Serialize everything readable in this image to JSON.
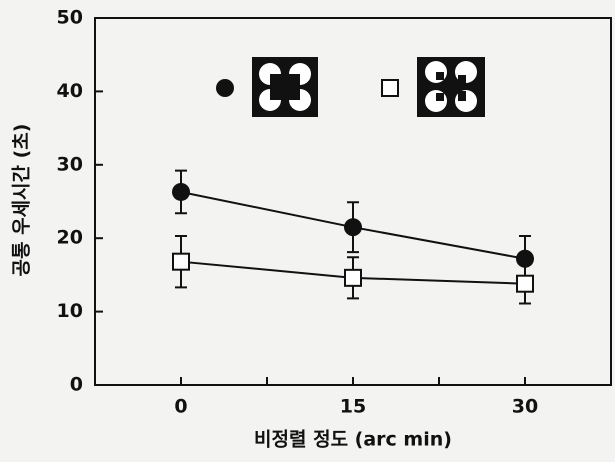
{
  "chart_data": {
    "type": "line",
    "x_label": "비정렬 정도 (arc min)",
    "y_label": "공통 우세시간 (초)",
    "x": [
      0,
      15,
      30
    ],
    "series": [
      {
        "marker": "circle",
        "color": "#111111",
        "values": [
          26.3,
          21.5,
          17.2
        ],
        "errors": [
          2.9,
          3.4,
          3.1
        ]
      },
      {
        "marker": "square",
        "color": "#111111",
        "values": [
          16.8,
          14.6,
          13.8
        ],
        "errors": [
          3.5,
          2.8,
          2.7
        ]
      }
    ],
    "xlim": [
      -7.5,
      37.5
    ],
    "xticks": [
      0,
      15,
      30
    ],
    "minor_xticks": [
      7.5,
      22.5
    ],
    "ylim": [
      0,
      50
    ],
    "yticks": [
      0,
      10,
      20,
      30,
      40,
      50
    ]
  }
}
